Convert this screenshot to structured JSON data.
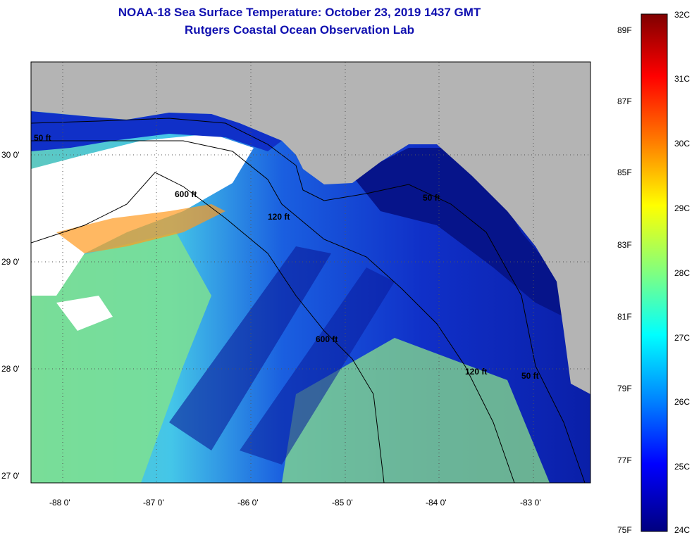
{
  "title": "NOAA-18 Sea Surface Temperature:  October 23, 2019 1437 GMT",
  "subtitle": "Rutgers Coastal Ocean Observation Lab",
  "map": {
    "lon_labels": [
      "-88 0'",
      "-87 0'",
      "-86 0'",
      "-85 0'",
      "-84 0'",
      "-83 0'"
    ],
    "lat_labels": [
      "30 0'",
      "29 0'",
      "28 0'",
      "27 0'"
    ],
    "contour_labels": [
      "50 ft",
      "600 ft",
      "120 ft",
      "50 ft",
      "600 ft",
      "120 ft",
      "50 ft"
    ],
    "colors": {
      "land": "#b4b4b4",
      "cloud": "#ffffff",
      "contour": "#000000"
    }
  },
  "colorbar": {
    "fahrenheit_labels": [
      "89F",
      "87F",
      "85F",
      "83F",
      "81F",
      "79F",
      "77F",
      "75F"
    ],
    "celsius_labels": [
      "32C",
      "31C",
      "30C",
      "29C",
      "28C",
      "27C",
      "26C",
      "25C",
      "24C"
    ],
    "colors": [
      "#7f0000",
      "#ff0000",
      "#ff8000",
      "#ffff00",
      "#80ff80",
      "#00ffff",
      "#0080ff",
      "#0000ff",
      "#00007f"
    ]
  }
}
